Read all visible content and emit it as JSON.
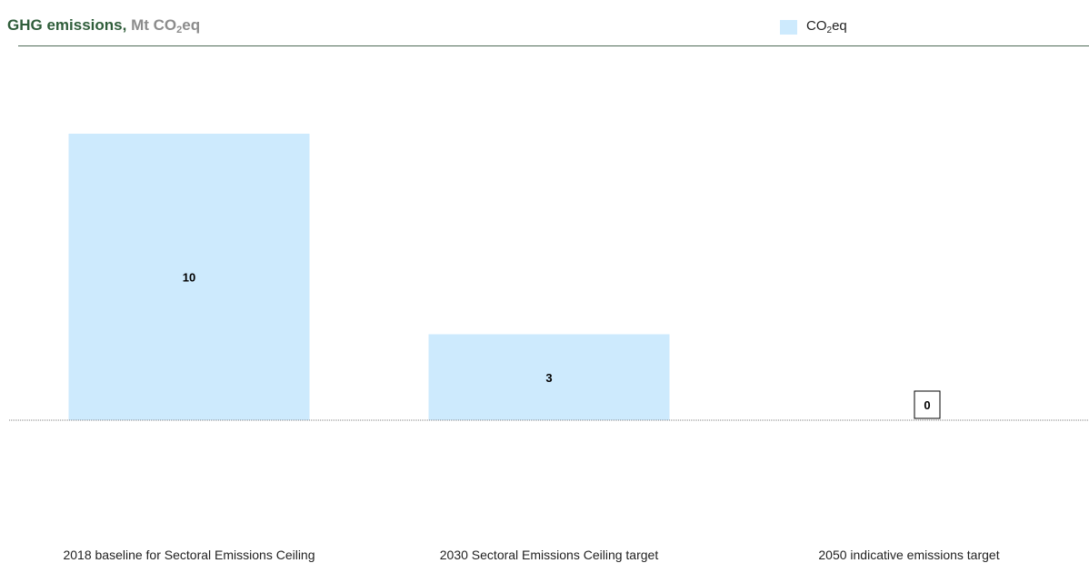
{
  "title": {
    "main": "GHG emissions,",
    "unit_prefix": "Mt CO",
    "unit_sub": "2",
    "unit_suffix": "eq"
  },
  "legend": {
    "label_prefix": "CO",
    "label_sub": "2",
    "label_suffix": "eq"
  },
  "colors": {
    "bar": "#cdeafd",
    "title": "#2f5d3a",
    "unit": "#8c8c8c",
    "rule": "#4e6b57",
    "axis": "#808080"
  },
  "chart_data": {
    "type": "bar",
    "categories": [
      "2018 baseline for Sectoral Emissions Ceiling",
      "2030 Sectoral Emissions Ceiling target",
      "2050 indicative emissions target"
    ],
    "series": [
      {
        "name": "CO₂eq",
        "values": [
          10,
          3,
          0
        ]
      }
    ],
    "data_labels": [
      "10",
      "3",
      "0"
    ],
    "ylim": [
      0,
      12
    ],
    "grid": false,
    "legend_position": "top-right"
  }
}
